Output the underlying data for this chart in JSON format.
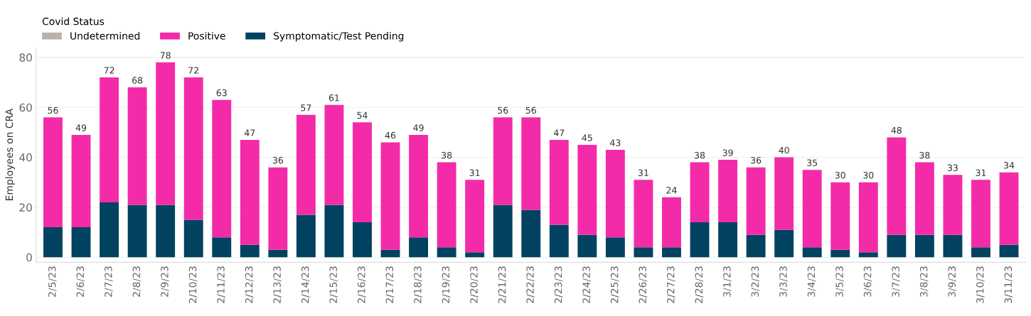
{
  "chart_data": {
    "type": "bar",
    "stacked": true,
    "ylabel": "Employees on CRA",
    "legend_title": "Covid Status",
    "legend": "top left",
    "grid": "y",
    "categories": [
      "2/5/23",
      "2/6/23",
      "2/7/23",
      "2/8/23",
      "2/9/23",
      "2/10/23",
      "2/11/23",
      "2/12/23",
      "2/13/23",
      "2/14/23",
      "2/15/23",
      "2/16/23",
      "2/17/23",
      "2/18/23",
      "2/19/23",
      "2/20/23",
      "2/21/23",
      "2/22/23",
      "2/23/23",
      "2/24/23",
      "2/25/23",
      "2/26/23",
      "2/27/23",
      "2/28/23",
      "3/1/23",
      "3/2/23",
      "3/3/23",
      "3/4/23",
      "3/5/23",
      "3/6/23",
      "3/7/23",
      "3/8/23",
      "3/9/23",
      "3/10/23",
      "3/11/23"
    ],
    "series": [
      {
        "name": "Symptomatic/Test Pending",
        "color": "#00425f",
        "values": [
          12,
          12,
          22,
          21,
          21,
          15,
          8,
          5,
          3,
          17,
          21,
          14,
          3,
          8,
          4,
          2,
          21,
          19,
          13,
          9,
          8,
          4,
          4,
          14,
          14,
          9,
          11,
          4,
          3,
          2,
          9,
          9,
          9,
          4,
          5
        ]
      },
      {
        "name": "Positive",
        "color": "#f42ba8",
        "values": [
          44,
          37,
          50,
          47,
          57,
          57,
          55,
          42,
          33,
          40,
          40,
          40,
          43,
          41,
          34,
          29,
          35,
          37,
          34,
          36,
          35,
          27,
          20,
          24,
          25,
          27,
          29,
          31,
          27,
          28,
          39,
          29,
          24,
          27,
          29
        ]
      },
      {
        "name": "Undetermined",
        "color": "#bab0ac",
        "values": [
          0,
          0,
          0,
          0,
          0,
          0,
          0,
          0,
          0,
          0,
          0,
          0,
          0,
          0,
          0,
          0,
          0,
          0,
          0,
          0,
          0,
          0,
          0,
          0,
          0,
          0,
          0,
          0,
          0,
          0,
          0,
          0,
          0,
          0,
          0
        ]
      }
    ],
    "totals": [
      "56",
      "49",
      "72",
      "68",
      "78",
      "72",
      "63",
      "47",
      "36",
      "57",
      "61",
      "54",
      "46",
      "49",
      "38",
      "31",
      "56",
      "56",
      "47",
      "45",
      "43",
      "31",
      "24",
      "38",
      "39",
      "36",
      "40",
      "35",
      "30",
      "30",
      "48",
      "38",
      "33",
      "31",
      "34"
    ],
    "ylim": [
      -2,
      84
    ],
    "yticks": [
      0,
      20,
      40,
      60,
      80
    ]
  }
}
